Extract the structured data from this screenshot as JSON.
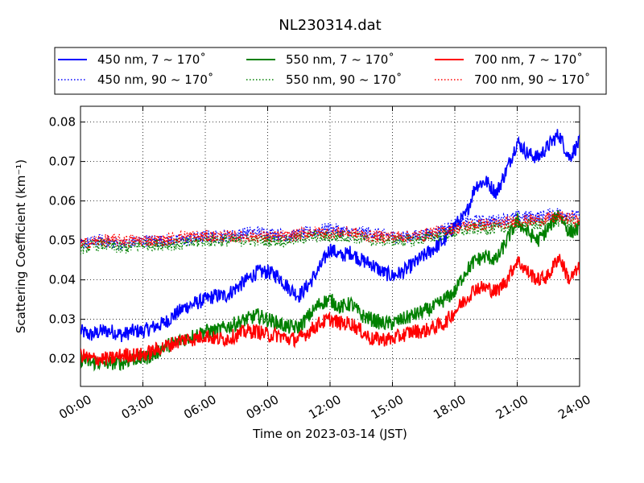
{
  "chart_data": {
    "type": "line",
    "title": "NL230314.dat",
    "xlabel": "Time on 2023-03-14 (JST)",
    "ylabel": "Scattering Coefficient (km⁻¹)",
    "x_unit": "hours",
    "xlim": [
      0,
      24
    ],
    "ylim": [
      0.013,
      0.084
    ],
    "xticks": [
      {
        "value": 0,
        "label": "00:00"
      },
      {
        "value": 3,
        "label": "03:00"
      },
      {
        "value": 6,
        "label": "06:00"
      },
      {
        "value": 9,
        "label": "09:00"
      },
      {
        "value": 12,
        "label": "12:00"
      },
      {
        "value": 15,
        "label": "15:00"
      },
      {
        "value": 18,
        "label": "18:00"
      },
      {
        "value": 21,
        "label": "21:00"
      },
      {
        "value": 24,
        "label": "24:00"
      }
    ],
    "yticks": [
      {
        "value": 0.02,
        "label": "0.02"
      },
      {
        "value": 0.03,
        "label": "0.03"
      },
      {
        "value": 0.04,
        "label": "0.04"
      },
      {
        "value": 0.05,
        "label": "0.05"
      },
      {
        "value": 0.06,
        "label": "0.06"
      },
      {
        "value": 0.07,
        "label": "0.07"
      },
      {
        "value": 0.08,
        "label": "0.08"
      }
    ],
    "grid": true,
    "legend_position": "top",
    "series": [
      {
        "name": "450 nm, 7 ~ 170˚",
        "color": "#0000ff",
        "style": "solid",
        "x": [
          0,
          0.5,
          1,
          1.5,
          2,
          2.5,
          3,
          3.5,
          4,
          4.5,
          5,
          5.5,
          6,
          6.5,
          7,
          7.5,
          8,
          8.5,
          9,
          9.5,
          10,
          10.5,
          11,
          11.5,
          12,
          12.5,
          13,
          13.5,
          14,
          14.5,
          15,
          15.5,
          16,
          16.5,
          17,
          17.5,
          18,
          18.5,
          19,
          19.5,
          20,
          20.5,
          21,
          21.5,
          22,
          22.5,
          23,
          23.5,
          24
        ],
        "y": [
          0.027,
          0.026,
          0.027,
          0.027,
          0.026,
          0.027,
          0.027,
          0.028,
          0.029,
          0.031,
          0.033,
          0.034,
          0.035,
          0.036,
          0.036,
          0.038,
          0.04,
          0.042,
          0.042,
          0.041,
          0.038,
          0.036,
          0.039,
          0.043,
          0.048,
          0.046,
          0.047,
          0.045,
          0.044,
          0.042,
          0.041,
          0.042,
          0.044,
          0.046,
          0.048,
          0.05,
          0.054,
          0.056,
          0.064,
          0.065,
          0.062,
          0.068,
          0.075,
          0.072,
          0.071,
          0.074,
          0.077,
          0.071,
          0.075
        ]
      },
      {
        "name": "450 nm, 90 ~ 170˚",
        "color": "#0000ff",
        "style": "dotted",
        "x": [
          0,
          1,
          2,
          3,
          4,
          5,
          6,
          7,
          8,
          9,
          10,
          11,
          12,
          13,
          14,
          15,
          16,
          17,
          18,
          19,
          20,
          21,
          22,
          23,
          24
        ],
        "y": [
          0.049,
          0.05,
          0.049,
          0.05,
          0.05,
          0.05,
          0.051,
          0.051,
          0.052,
          0.052,
          0.051,
          0.052,
          0.053,
          0.052,
          0.052,
          0.051,
          0.051,
          0.052,
          0.054,
          0.055,
          0.055,
          0.056,
          0.056,
          0.057,
          0.056
        ]
      },
      {
        "name": "550 nm, 7 ~ 170˚",
        "color": "#008000",
        "style": "solid",
        "x": [
          0,
          0.5,
          1,
          1.5,
          2,
          2.5,
          3,
          3.5,
          4,
          4.5,
          5,
          5.5,
          6,
          6.5,
          7,
          7.5,
          8,
          8.5,
          9,
          9.5,
          10,
          10.5,
          11,
          11.5,
          12,
          12.5,
          13,
          13.5,
          14,
          14.5,
          15,
          15.5,
          16,
          16.5,
          17,
          17.5,
          18,
          18.5,
          19,
          19.5,
          20,
          20.5,
          21,
          21.5,
          22,
          22.5,
          23,
          23.5,
          24
        ],
        "y": [
          0.02,
          0.019,
          0.019,
          0.019,
          0.019,
          0.02,
          0.02,
          0.021,
          0.023,
          0.024,
          0.025,
          0.026,
          0.027,
          0.027,
          0.028,
          0.029,
          0.03,
          0.031,
          0.03,
          0.029,
          0.028,
          0.028,
          0.031,
          0.034,
          0.035,
          0.033,
          0.034,
          0.031,
          0.03,
          0.029,
          0.029,
          0.03,
          0.031,
          0.032,
          0.033,
          0.035,
          0.037,
          0.042,
          0.045,
          0.046,
          0.045,
          0.05,
          0.055,
          0.052,
          0.05,
          0.053,
          0.057,
          0.052,
          0.053
        ]
      },
      {
        "name": "550 nm, 90 ~ 170˚",
        "color": "#008000",
        "style": "dotted",
        "x": [
          0,
          1,
          2,
          3,
          4,
          5,
          6,
          7,
          8,
          9,
          10,
          11,
          12,
          13,
          14,
          15,
          16,
          17,
          18,
          19,
          20,
          21,
          22,
          23,
          24
        ],
        "y": [
          0.048,
          0.049,
          0.048,
          0.049,
          0.049,
          0.049,
          0.05,
          0.05,
          0.05,
          0.05,
          0.05,
          0.051,
          0.051,
          0.051,
          0.05,
          0.05,
          0.05,
          0.051,
          0.052,
          0.053,
          0.053,
          0.054,
          0.054,
          0.055,
          0.054
        ]
      },
      {
        "name": "700 nm, 7 ~ 170˚",
        "color": "#ff0000",
        "style": "solid",
        "x": [
          0,
          0.5,
          1,
          1.5,
          2,
          2.5,
          3,
          3.5,
          4,
          4.5,
          5,
          5.5,
          6,
          6.5,
          7,
          7.5,
          8,
          8.5,
          9,
          9.5,
          10,
          10.5,
          11,
          11.5,
          12,
          12.5,
          13,
          13.5,
          14,
          14.5,
          15,
          15.5,
          16,
          16.5,
          17,
          17.5,
          18,
          18.5,
          19,
          19.5,
          20,
          20.5,
          21,
          21.5,
          22,
          22.5,
          23,
          23.5,
          24
        ],
        "y": [
          0.021,
          0.02,
          0.02,
          0.02,
          0.021,
          0.021,
          0.021,
          0.022,
          0.023,
          0.024,
          0.025,
          0.025,
          0.026,
          0.025,
          0.025,
          0.026,
          0.027,
          0.027,
          0.026,
          0.026,
          0.025,
          0.025,
          0.027,
          0.029,
          0.03,
          0.029,
          0.029,
          0.027,
          0.025,
          0.025,
          0.025,
          0.026,
          0.027,
          0.027,
          0.028,
          0.029,
          0.032,
          0.035,
          0.038,
          0.038,
          0.037,
          0.04,
          0.045,
          0.042,
          0.04,
          0.041,
          0.046,
          0.04,
          0.043
        ]
      },
      {
        "name": "700 nm, 90 ~ 170˚",
        "color": "#ff0000",
        "style": "dotted",
        "x": [
          0,
          1,
          2,
          3,
          4,
          5,
          6,
          7,
          8,
          9,
          10,
          11,
          12,
          13,
          14,
          15,
          16,
          17,
          18,
          19,
          20,
          21,
          22,
          23,
          24
        ],
        "y": [
          0.049,
          0.05,
          0.05,
          0.05,
          0.05,
          0.051,
          0.051,
          0.051,
          0.051,
          0.051,
          0.051,
          0.052,
          0.052,
          0.052,
          0.051,
          0.051,
          0.051,
          0.052,
          0.053,
          0.054,
          0.054,
          0.055,
          0.055,
          0.056,
          0.055
        ]
      }
    ]
  }
}
